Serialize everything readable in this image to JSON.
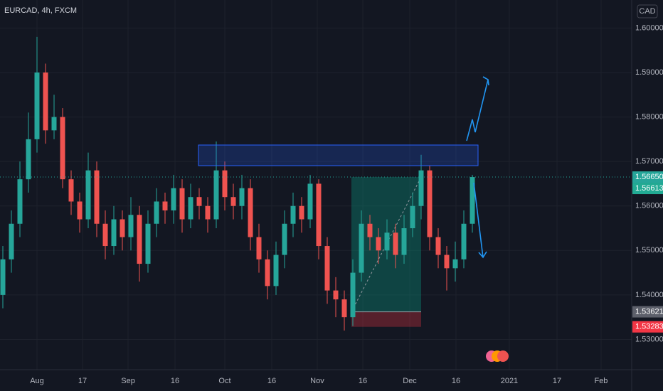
{
  "chart_data": {
    "type": "candlestick",
    "title": "EURCAD, 4h, FXCM",
    "currency": "CAD",
    "up_color": "#26a69a",
    "down_color": "#ef5350",
    "grid": true,
    "ylim": [
      1.5232,
      1.6063
    ],
    "yticks": [
      {
        "value": 1.53,
        "label": "1.53000"
      },
      {
        "value": 1.54,
        "label": "1.54000"
      },
      {
        "value": 1.55,
        "label": "1.55000"
      },
      {
        "value": 1.56,
        "label": "1.56000"
      },
      {
        "value": 1.57,
        "label": "1.57000"
      },
      {
        "value": 1.58,
        "label": "1.58000"
      },
      {
        "value": 1.59,
        "label": "1.59000"
      },
      {
        "value": 1.6,
        "label": "1.60000"
      }
    ],
    "xlim": [
      -0.333,
      73.667
    ],
    "xticks": [
      {
        "value": 4,
        "label": "Aug"
      },
      {
        "value": 9.33,
        "label": "17"
      },
      {
        "value": 14.67,
        "label": "Sep"
      },
      {
        "value": 20.17,
        "label": "16"
      },
      {
        "value": 26,
        "label": "Oct"
      },
      {
        "value": 31.5,
        "label": "16"
      },
      {
        "value": 36.83,
        "label": "Nov"
      },
      {
        "value": 42.17,
        "label": "16"
      },
      {
        "value": 47.67,
        "label": "Dec"
      },
      {
        "value": 53.08,
        "label": "16"
      },
      {
        "value": 59.33,
        "label": "2021"
      },
      {
        "value": 64.92,
        "label": "17"
      },
      {
        "value": 70.08,
        "label": "Feb"
      }
    ],
    "open": [
      1.54,
      1.548,
      1.556,
      1.566,
      1.575,
      1.59,
      1.577,
      1.58,
      1.566,
      1.561,
      1.557,
      1.568,
      1.556,
      1.551,
      1.557,
      1.553,
      1.558,
      1.547,
      1.556,
      1.561,
      1.559,
      1.564,
      1.557,
      1.562,
      1.56,
      1.557,
      1.568,
      1.562,
      1.56,
      1.564,
      1.553,
      1.548,
      1.542,
      1.549,
      1.556,
      1.56,
      1.557,
      1.565,
      1.551,
      1.541,
      1.539,
      1.535,
      1.545,
      1.556,
      1.553,
      1.55,
      1.554,
      1.549,
      1.555,
      1.56,
      1.568,
      1.553,
      1.549,
      1.546,
      1.548,
      1.556
    ],
    "high": [
      1.551,
      1.559,
      1.57,
      1.581,
      1.598,
      1.592,
      1.585,
      1.582,
      1.568,
      1.563,
      1.572,
      1.57,
      1.559,
      1.56,
      1.559,
      1.562,
      1.56,
      1.559,
      1.564,
      1.563,
      1.567,
      1.566,
      1.565,
      1.564,
      1.562,
      1.5745,
      1.57,
      1.565,
      1.567,
      1.566,
      1.556,
      1.55,
      1.552,
      1.559,
      1.563,
      1.562,
      1.567,
      1.566,
      1.553,
      1.544,
      1.541,
      1.548,
      1.559,
      1.558,
      1.555,
      1.557,
      1.556,
      1.558,
      1.563,
      1.5715,
      1.569,
      1.555,
      1.551,
      1.552,
      1.559,
      1.567
    ],
    "low": [
      1.537,
      1.545,
      1.553,
      1.563,
      1.572,
      1.574,
      1.575,
      1.564,
      1.558,
      1.554,
      1.555,
      1.553,
      1.548,
      1.549,
      1.55,
      1.55,
      1.543,
      1.545,
      1.553,
      1.556,
      1.556,
      1.554,
      1.555,
      1.557,
      1.554,
      1.555,
      1.559,
      1.557,
      1.557,
      1.55,
      1.545,
      1.539,
      1.54,
      1.546,
      1.553,
      1.554,
      1.555,
      1.548,
      1.538,
      1.535,
      1.532,
      1.533,
      1.543,
      1.55,
      1.547,
      1.548,
      1.546,
      1.547,
      1.553,
      1.557,
      1.55,
      1.546,
      1.541,
      1.543,
      1.546,
      1.554
    ],
    "close": [
      1.548,
      1.556,
      1.566,
      1.575,
      1.59,
      1.577,
      1.58,
      1.566,
      1.561,
      1.557,
      1.568,
      1.556,
      1.551,
      1.557,
      1.553,
      1.558,
      1.547,
      1.556,
      1.561,
      1.559,
      1.564,
      1.557,
      1.562,
      1.56,
      1.557,
      1.568,
      1.562,
      1.56,
      1.564,
      1.553,
      1.548,
      1.542,
      1.549,
      1.556,
      1.56,
      1.557,
      1.565,
      1.551,
      1.541,
      1.539,
      1.535,
      1.545,
      1.556,
      1.553,
      1.55,
      1.554,
      1.549,
      1.555,
      1.56,
      1.568,
      1.553,
      1.549,
      1.546,
      1.548,
      1.556,
      1.5665
    ],
    "price_labels": [
      {
        "value": 1.5665,
        "label": "1.56650",
        "color": "#26a69a"
      },
      {
        "value": 1.56613,
        "label": "1.56613",
        "color": "#22ab94"
      },
      {
        "value": 1.53621,
        "label": "1.53621",
        "color": "#5d606b"
      },
      {
        "value": 1.53283,
        "label": "1.53283",
        "color": "#f23645"
      }
    ]
  }
}
